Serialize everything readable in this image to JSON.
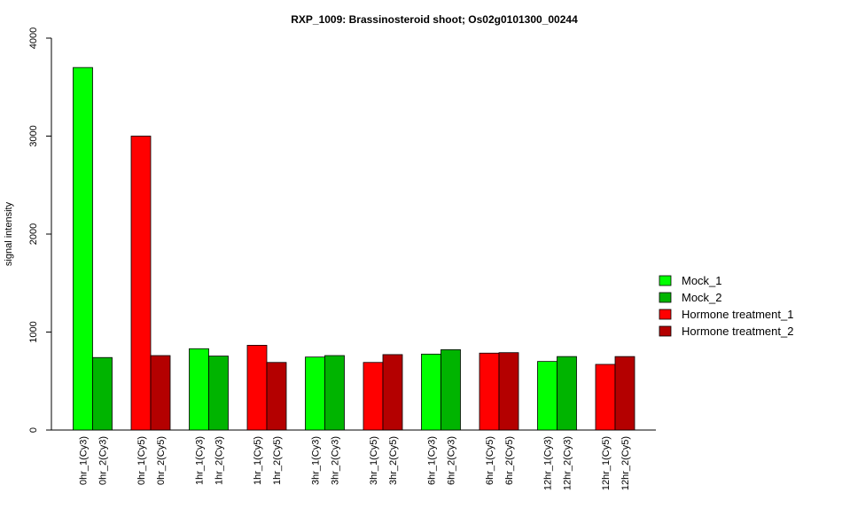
{
  "chart_data": {
    "type": "bar",
    "title": "RXP_1009: Brassinosteroid shoot; Os02g0101300_00244",
    "ylabel": "signal intensity",
    "xlabel": "",
    "ylim": [
      0,
      4000
    ],
    "yticks": [
      "0",
      "1000",
      "2000",
      "3000",
      "4000"
    ],
    "categories": [
      "0hr_1(Cy3)",
      "0hr_2(Cy3)",
      "0hr_1(Cy5)",
      "0hr_2(Cy5)",
      "1hr_1(Cy3)",
      "1hr_2(Cy3)",
      "1hr_1(Cy5)",
      "1hr_2(Cy5)",
      "3hr_1(Cy3)",
      "3hr_2(Cy3)",
      "3hr_1(Cy5)",
      "3hr_2(Cy5)",
      "6hr_1(Cy3)",
      "6hr_2(Cy3)",
      "6hr_1(Cy5)",
      "6hr_2(Cy5)",
      "12hr_1(Cy3)",
      "12hr_2(Cy3)",
      "12hr_1(Cy5)",
      "12hr_2(Cy5)"
    ],
    "values": [
      3700,
      740,
      3000,
      760,
      830,
      755,
      865,
      690,
      745,
      760,
      690,
      770,
      775,
      820,
      785,
      790,
      700,
      750,
      670,
      750
    ],
    "series_index": [
      0,
      1,
      2,
      3,
      0,
      1,
      2,
      3,
      0,
      1,
      2,
      3,
      0,
      1,
      2,
      3,
      0,
      1,
      2,
      3
    ],
    "series": [
      {
        "name": "Mock_1",
        "color": "#00ff00"
      },
      {
        "name": "Mock_2",
        "color": "#00b400"
      },
      {
        "name": "Hormone treatment_1",
        "color": "#ff0000"
      },
      {
        "name": "Hormone treatment_2",
        "color": "#b40000"
      }
    ],
    "grid": false,
    "legend_position": "right"
  }
}
